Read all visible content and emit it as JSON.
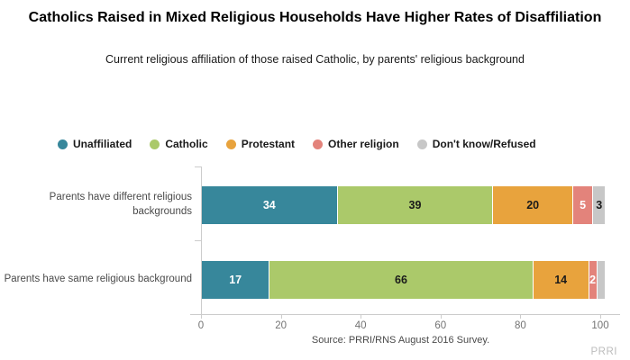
{
  "title": "Catholics Raised in Mixed Religious Households Have Higher Rates of Disaffiliation",
  "subtitle": "Current religious affiliation of those raised Catholic, by parents' religious background",
  "source": "Source: PRRI/RNS August 2016 Survey.",
  "brand": "PRRI",
  "colors": {
    "unaffiliated": "#37879B",
    "catholic": "#ABC96A",
    "protestant": "#E8A33D",
    "other_religion": "#E3837B",
    "dont_know_refused": "#C7C7C7",
    "axis": "#CCCCCC",
    "tick_label": "#737373"
  },
  "chart_data": {
    "type": "bar",
    "subtype": "horizontal-stacked",
    "title": "Catholics Raised in Mixed Religious Households Have Higher Rates of Disaffiliation",
    "xlabel": "",
    "ylabel": "",
    "xlim": [
      0,
      100
    ],
    "x_ticks": [
      0,
      20,
      40,
      60,
      80,
      100
    ],
    "grid": false,
    "legend_position": "top-left",
    "categories": [
      "Parents have different religious backgrounds",
      "Parents have same religious background"
    ],
    "series": [
      {
        "name": "Unaffiliated",
        "color": "#37879B",
        "label_color": "#FFFFFF",
        "values": [
          34,
          17
        ]
      },
      {
        "name": "Catholic",
        "color": "#ABC96A",
        "label_color": "#1A1A1A",
        "values": [
          39,
          66
        ]
      },
      {
        "name": "Protestant",
        "color": "#E8A33D",
        "label_color": "#1A1A1A",
        "values": [
          20,
          14
        ]
      },
      {
        "name": "Other religion",
        "color": "#E3837B",
        "label_color": "#FFFFFF",
        "values": [
          5,
          2
        ]
      },
      {
        "name": "Don't know/Refused",
        "color": "#C7C7C7",
        "label_color": "#1A1A1A",
        "values": [
          3,
          2
        ]
      }
    ],
    "value_labels": [
      [
        "34",
        "39",
        "20",
        "5",
        "3"
      ],
      [
        "17",
        "66",
        "14",
        "2",
        ""
      ]
    ]
  }
}
